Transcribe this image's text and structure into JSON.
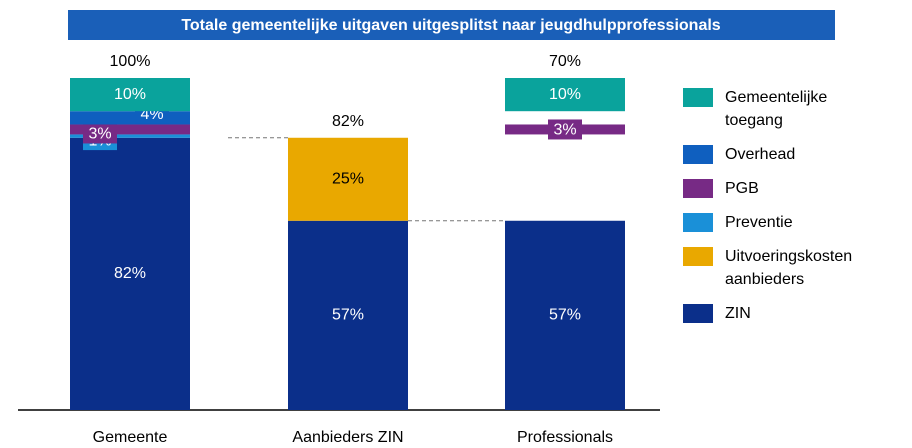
{
  "chart_data": {
    "type": "stacked_bar",
    "title": "Totale gemeentelijke uitgaven uitgesplitst naar jeugdhulpprofessionals",
    "categories": [
      "Gemeente",
      "Aanbieders ZIN",
      "Professionals"
    ],
    "totals": [
      100,
      82,
      70
    ],
    "total_labels": [
      "100%",
      "82%",
      "70%"
    ],
    "ylim": [
      0,
      100
    ],
    "series": [
      {
        "name": "Gemeentelijke toegang",
        "color": "#0aa39c",
        "values": [
          10,
          null,
          10
        ],
        "value_labels": [
          "10%",
          null,
          "10%"
        ]
      },
      {
        "name": "Overhead",
        "color": "#0f5fbf",
        "values": [
          4,
          null,
          null
        ],
        "value_labels": [
          "4%",
          null,
          null
        ]
      },
      {
        "name": "PGB",
        "color": "#772a85",
        "values": [
          3,
          null,
          3
        ],
        "value_labels": [
          "3%",
          null,
          "3%"
        ]
      },
      {
        "name": "Preventie",
        "color": "#1a90d8",
        "values": [
          1,
          null,
          null
        ],
        "value_labels": [
          "1%",
          null,
          null
        ]
      },
      {
        "name": "Uitvoeringskosten aanbieders",
        "color": "#e9a800",
        "values": [
          null,
          25,
          null
        ],
        "value_labels": [
          null,
          "25%",
          null
        ]
      },
      {
        "name": "ZIN",
        "color": "#0b2f8a",
        "values": [
          82,
          57,
          57
        ],
        "value_labels": [
          "82%",
          "57%",
          "57%"
        ]
      }
    ]
  }
}
